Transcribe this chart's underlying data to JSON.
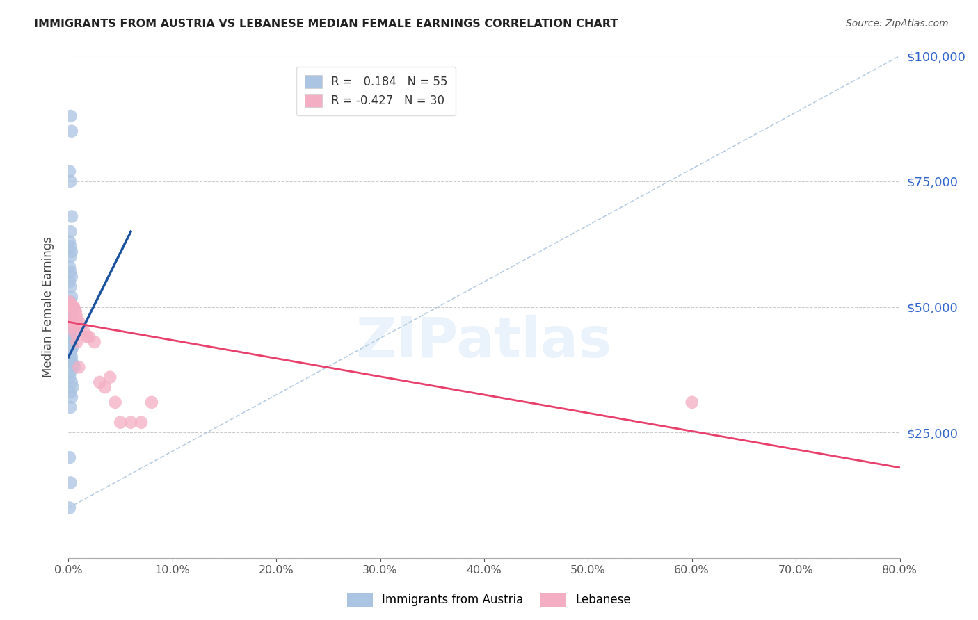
{
  "title": "IMMIGRANTS FROM AUSTRIA VS LEBANESE MEDIAN FEMALE EARNINGS CORRELATION CHART",
  "source": "Source: ZipAtlas.com",
  "ylabel": "Median Female Earnings",
  "legend_labels": [
    "Immigrants from Austria",
    "Lebanese"
  ],
  "austria_R": 0.184,
  "austria_N": 55,
  "lebanese_R": -0.427,
  "lebanese_N": 30,
  "austria_color": "#aac4e2",
  "lebanese_color": "#f4aec4",
  "austria_line_color": "#1a52a0",
  "lebanese_line_color": "#e8406a",
  "xlim": [
    0,
    0.8
  ],
  "ylim": [
    0,
    100000
  ],
  "austria_x": [
    0.002,
    0.003,
    0.001,
    0.002,
    0.003,
    0.002,
    0.001,
    0.002,
    0.003,
    0.002,
    0.001,
    0.002,
    0.003,
    0.001,
    0.002,
    0.003,
    0.002,
    0.001,
    0.002,
    0.003,
    0.001,
    0.002,
    0.003,
    0.002,
    0.001,
    0.002,
    0.003,
    0.002,
    0.004,
    0.003,
    0.001,
    0.002,
    0.003,
    0.002,
    0.001,
    0.003,
    0.004,
    0.003,
    0.002,
    0.001,
    0.003,
    0.002,
    0.001,
    0.005,
    0.006,
    0.002,
    0.001,
    0.003,
    0.004,
    0.002,
    0.003,
    0.002,
    0.001,
    0.002,
    0.001
  ],
  "austria_y": [
    88000,
    85000,
    77000,
    75000,
    68000,
    65000,
    63000,
    62000,
    61000,
    60000,
    58000,
    57000,
    56000,
    55000,
    54000,
    52000,
    51000,
    50500,
    50200,
    50000,
    49800,
    49500,
    49000,
    48500,
    48000,
    47500,
    47000,
    46500,
    46000,
    45500,
    45000,
    44500,
    44000,
    43500,
    43000,
    42500,
    42000,
    41500,
    41000,
    40500,
    40000,
    39500,
    39000,
    38500,
    38000,
    37000,
    36000,
    35000,
    34000,
    33000,
    32000,
    30000,
    20000,
    15000,
    10000
  ],
  "lebanese_x": [
    0.001,
    0.002,
    0.003,
    0.004,
    0.005,
    0.006,
    0.007,
    0.008,
    0.01,
    0.012,
    0.015,
    0.018,
    0.02,
    0.025,
    0.03,
    0.035,
    0.04,
    0.045,
    0.05,
    0.06,
    0.07,
    0.08,
    0.002,
    0.003,
    0.004,
    0.005,
    0.006,
    0.008,
    0.6,
    0.01
  ],
  "lebanese_y": [
    51000,
    50500,
    50000,
    50000,
    50000,
    49500,
    49000,
    48000,
    47000,
    46000,
    45000,
    44000,
    44000,
    43000,
    35000,
    34000,
    36000,
    31000,
    27000,
    27000,
    27000,
    31000,
    48000,
    47000,
    46000,
    47000,
    45000,
    43000,
    31000,
    38000
  ],
  "austria_trend_x": [
    0.0,
    0.06
  ],
  "austria_trend_y": [
    40000,
    65000
  ],
  "lebanese_trend_x": [
    0.0,
    0.8
  ],
  "lebanese_trend_y": [
    47000,
    18000
  ],
  "ref_line_x": [
    0.0,
    0.8
  ],
  "ref_line_y": [
    10000,
    100000
  ],
  "yticks": [
    0,
    25000,
    50000,
    75000,
    100000
  ],
  "xticks": [
    0.0,
    0.1,
    0.2,
    0.3,
    0.4,
    0.5,
    0.6,
    0.7,
    0.8
  ]
}
